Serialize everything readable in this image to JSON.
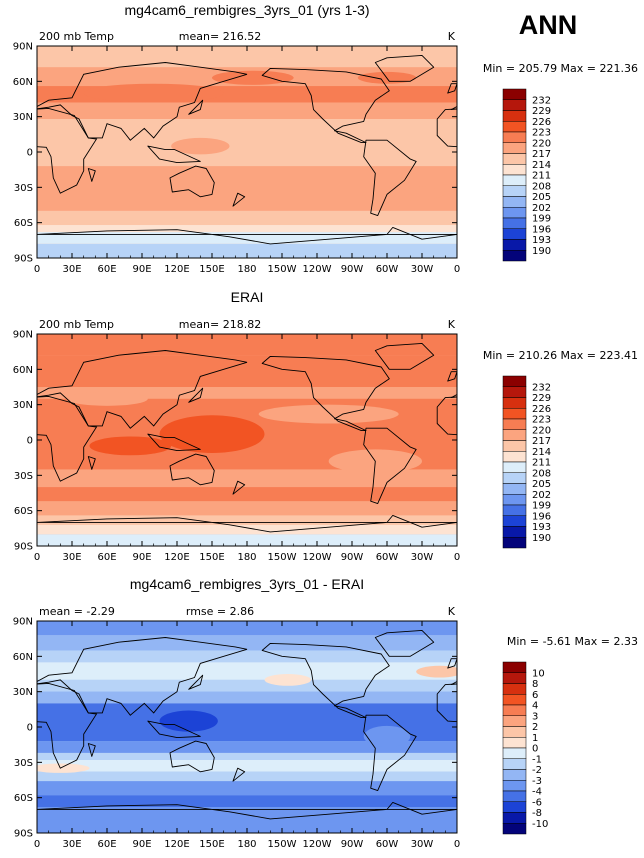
{
  "season": "ANN",
  "chart_data": [
    {
      "type": "heatmap",
      "title": "mg4cam6_rembigres_3yrs_01 (yrs 1-3)",
      "left_label": "200 mb Temp",
      "center_label": "mean= 216.52",
      "units": "K",
      "stats": "Min = 205.79 Max = 221.36",
      "xticks": [
        "0",
        "30E",
        "60E",
        "90E",
        "120E",
        "150E",
        "180",
        "150W",
        "120W",
        "90W",
        "60W",
        "30W",
        "0"
      ],
      "yticks": [
        "90N",
        "60N",
        "30N",
        "0",
        "30S",
        "60S",
        "90S"
      ],
      "levels": [
        "232",
        "229",
        "226",
        "223",
        "220",
        "217",
        "214",
        "211",
        "208",
        "205",
        "202",
        "199",
        "196",
        "193",
        "190"
      ],
      "colors": [
        "#8b0000",
        "#b5170c",
        "#d7300f",
        "#f25423",
        "#f77d53",
        "#fba47f",
        "#fcc6a8",
        "#fde3d2",
        "#ddeefa",
        "#b7d3f7",
        "#93b6f4",
        "#6d96f0",
        "#4571e6",
        "#1c43d6",
        "#0818a8",
        "#03037a"
      ],
      "base_level": 6,
      "bands": [
        {
          "lat": [
            90,
            72
          ],
          "level": 6
        },
        {
          "lat": [
            72,
            56
          ],
          "level": 5
        },
        {
          "lat": [
            56,
            42
          ],
          "level": 4
        },
        {
          "lat": [
            42,
            28
          ],
          "level": 5
        },
        {
          "lat": [
            28,
            -12
          ],
          "level": 6
        },
        {
          "lat": [
            -12,
            -50
          ],
          "level": 5
        },
        {
          "lat": [
            -50,
            -62
          ],
          "level": 6
        },
        {
          "lat": [
            -62,
            -68
          ],
          "level": 7
        },
        {
          "lat": [
            -68,
            -78
          ],
          "level": 8
        },
        {
          "lat": [
            -78,
            -90
          ],
          "level": 9
        }
      ],
      "blobs": [
        {
          "lon": 185,
          "lat": 63,
          "rl": 35,
          "rt": 6,
          "level": 4
        },
        {
          "lon": 300,
          "lat": 63,
          "rl": 25,
          "rt": 5,
          "level": 4
        },
        {
          "lon": 100,
          "lat": 50,
          "rl": 60,
          "rt": 8,
          "level": 4
        },
        {
          "lon": 140,
          "lat": 5,
          "rl": 25,
          "rt": 7,
          "level": 5
        },
        {
          "lon": 320,
          "lat": -35,
          "rl": 30,
          "rt": 6,
          "level": 5
        }
      ]
    },
    {
      "type": "heatmap",
      "title": "ERAI",
      "left_label": "200 mb Temp",
      "center_label": "mean= 218.82",
      "units": "K",
      "stats": "Min = 210.26 Max = 223.41",
      "xticks": [
        "0",
        "30E",
        "60E",
        "90E",
        "120E",
        "150E",
        "180",
        "150W",
        "120W",
        "90W",
        "60W",
        "30W",
        "0"
      ],
      "yticks": [
        "90N",
        "60N",
        "30N",
        "0",
        "30S",
        "60S",
        "90S"
      ],
      "levels": [
        "232",
        "229",
        "226",
        "223",
        "220",
        "217",
        "214",
        "211",
        "208",
        "205",
        "202",
        "199",
        "196",
        "193",
        "190"
      ],
      "colors": [
        "#8b0000",
        "#b5170c",
        "#d7300f",
        "#f25423",
        "#f77d53",
        "#fba47f",
        "#fcc6a8",
        "#fde3d2",
        "#ddeefa",
        "#b7d3f7",
        "#93b6f4",
        "#6d96f0",
        "#4571e6",
        "#1c43d6",
        "#0818a8",
        "#03037a"
      ],
      "base_level": 5,
      "bands": [
        {
          "lat": [
            90,
            72
          ],
          "level": 4
        },
        {
          "lat": [
            72,
            45
          ],
          "level": 4
        },
        {
          "lat": [
            45,
            35
          ],
          "level": 5
        },
        {
          "lat": [
            35,
            -25
          ],
          "level": 4
        },
        {
          "lat": [
            -25,
            -40
          ],
          "level": 5
        },
        {
          "lat": [
            -40,
            -52
          ],
          "level": 4
        },
        {
          "lat": [
            -52,
            -64
          ],
          "level": 5
        },
        {
          "lat": [
            -64,
            -72
          ],
          "level": 6
        },
        {
          "lat": [
            -72,
            -80
          ],
          "level": 7
        },
        {
          "lat": [
            -80,
            -90
          ],
          "level": 8
        }
      ],
      "blobs": [
        {
          "lon": 250,
          "lat": 22,
          "rl": 60,
          "rt": 8,
          "level": 5
        },
        {
          "lon": 60,
          "lat": 35,
          "rl": 35,
          "rt": 6,
          "level": 5
        },
        {
          "lon": 290,
          "lat": -18,
          "rl": 40,
          "rt": 10,
          "level": 5
        },
        {
          "lon": 150,
          "lat": 5,
          "rl": 45,
          "rt": 16,
          "level": 3
        },
        {
          "lon": 80,
          "lat": -5,
          "rl": 35,
          "rt": 8,
          "level": 3
        }
      ]
    },
    {
      "type": "heatmap",
      "title": "mg4cam6_rembigres_3yrs_01 - ERAI",
      "left_label": "mean =   -2.29",
      "center_label": "rmse =    2.86",
      "units": "K",
      "stats": "Min =   -5.61 Max =    2.33",
      "xticks": [
        "0",
        "30E",
        "60E",
        "90E",
        "120E",
        "150E",
        "180",
        "150W",
        "120W",
        "90W",
        "60W",
        "30W",
        "0"
      ],
      "yticks": [
        "90N",
        "60N",
        "30N",
        "0",
        "30S",
        "60S",
        "90S"
      ],
      "levels": [
        "10",
        "8",
        "6",
        "4",
        "3",
        "2",
        "1",
        "0",
        "-1",
        "-2",
        "-3",
        "-4",
        "-6",
        "-8",
        "-10"
      ],
      "colors": [
        "#8b0000",
        "#b5170c",
        "#d7300f",
        "#f25423",
        "#f77d53",
        "#fba47f",
        "#fcc6a8",
        "#fde3d2",
        "#ddeefa",
        "#b7d3f7",
        "#93b6f4",
        "#6d96f0",
        "#4571e6",
        "#1c43d6",
        "#0818a8",
        "#03037a"
      ],
      "base_level": 10,
      "bands": [
        {
          "lat": [
            90,
            78
          ],
          "level": 11
        },
        {
          "lat": [
            78,
            65
          ],
          "level": 10
        },
        {
          "lat": [
            65,
            55
          ],
          "level": 9
        },
        {
          "lat": [
            55,
            40
          ],
          "level": 8
        },
        {
          "lat": [
            40,
            30
          ],
          "level": 9
        },
        {
          "lat": [
            30,
            20
          ],
          "level": 10
        },
        {
          "lat": [
            20,
            -12
          ],
          "level": 12
        },
        {
          "lat": [
            -12,
            -22
          ],
          "level": 11
        },
        {
          "lat": [
            -22,
            -28
          ],
          "level": 9
        },
        {
          "lat": [
            -28,
            -38
          ],
          "level": 8
        },
        {
          "lat": [
            -38,
            -46
          ],
          "level": 9
        },
        {
          "lat": [
            -46,
            -58
          ],
          "level": 11
        },
        {
          "lat": [
            -58,
            -68
          ],
          "level": 12
        },
        {
          "lat": [
            -68,
            -90
          ],
          "level": 11
        }
      ],
      "blobs": [
        {
          "lon": 345,
          "lat": 47,
          "rl": 20,
          "rt": 5,
          "level": 6
        },
        {
          "lon": 215,
          "lat": 40,
          "rl": 20,
          "rt": 5,
          "level": 7
        },
        {
          "lon": 130,
          "lat": 5,
          "rl": 25,
          "rt": 9,
          "level": 13
        },
        {
          "lon": 300,
          "lat": -8,
          "rl": 20,
          "rt": 9,
          "level": 11
        },
        {
          "lon": 20,
          "lat": -35,
          "rl": 25,
          "rt": 4,
          "level": 7
        }
      ]
    }
  ]
}
